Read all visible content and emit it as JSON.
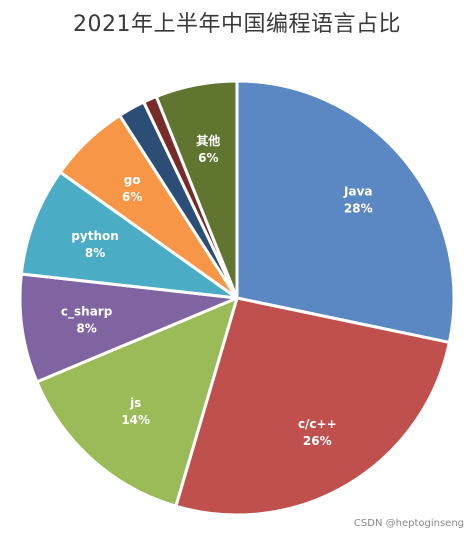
{
  "page": {
    "title": "2021年上半年中国编程语言占比",
    "watermark": "CSDN @heptoginseng"
  },
  "chart_data": {
    "type": "pie",
    "title": "2021年上半年中国编程语言占比",
    "slices": [
      {
        "label": "Java",
        "value": 28,
        "value_label": "28%",
        "color": "#5B87C2"
      },
      {
        "label": "c/c++",
        "value": 26,
        "value_label": "26%",
        "color": "#C0504D"
      },
      {
        "label": "js",
        "value": 14,
        "value_label": "14%",
        "color": "#9BBB59"
      },
      {
        "label": "c_sharp",
        "value": 8,
        "value_label": "8%",
        "color": "#8064A2"
      },
      {
        "label": "python",
        "value": 8,
        "value_label": "8%",
        "color": "#4BACC6"
      },
      {
        "label": "go",
        "value": 6,
        "value_label": "6%",
        "color": "#F79646"
      },
      {
        "label": "",
        "value": 2,
        "value_label": "",
        "color": "#2C4D75"
      },
      {
        "label": "",
        "value": 1,
        "value_label": "",
        "color": "#772C2A"
      },
      {
        "label": "其他",
        "value": 6,
        "value_label": "6%",
        "color": "#5F7530"
      }
    ]
  }
}
